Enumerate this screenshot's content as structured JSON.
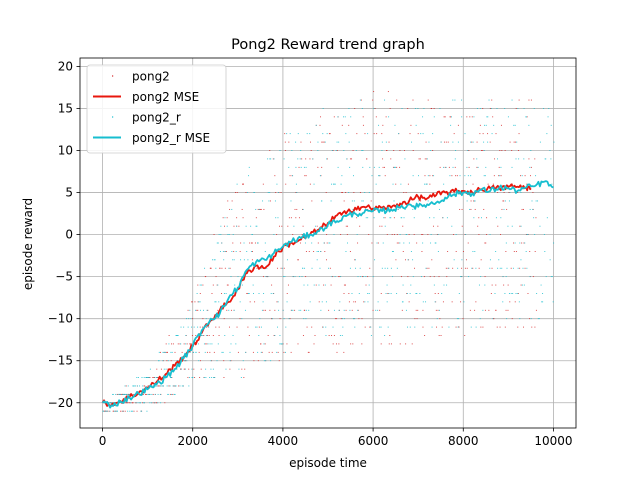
{
  "chart_data": {
    "type": "line",
    "title": "Pong2 Reward trend graph",
    "xlabel": "episode time",
    "ylabel": "episode reward",
    "xlim": [
      -500,
      10500
    ],
    "ylim": [
      -23,
      21
    ],
    "xticks": [
      0,
      2000,
      4000,
      6000,
      8000,
      10000
    ],
    "yticks": [
      -20,
      -15,
      -10,
      -5,
      0,
      5,
      10,
      15,
      20
    ],
    "grid": true,
    "legend_position": "top-left",
    "series": [
      {
        "name": "pong2",
        "kind": "scatter",
        "color": "#d62728",
        "x_range": [
          0,
          9600
        ],
        "y_band": [
          {
            "x": 0,
            "lo": -21,
            "hi": -20
          },
          {
            "x": 1000,
            "lo": -21,
            "hi": -17
          },
          {
            "x": 2000,
            "lo": -17,
            "hi": -7
          },
          {
            "x": 3000,
            "lo": -17,
            "hi": 8
          },
          {
            "x": 4000,
            "lo": -15,
            "hi": 12
          },
          {
            "x": 5000,
            "lo": -14,
            "hi": 15
          },
          {
            "x": 6000,
            "lo": -14,
            "hi": 17
          },
          {
            "x": 7000,
            "lo": -13,
            "hi": 16
          },
          {
            "x": 8000,
            "lo": -12,
            "hi": 16
          },
          {
            "x": 9600,
            "lo": -11,
            "hi": 16
          }
        ]
      },
      {
        "name": "pong2 MSE",
        "kind": "line",
        "color": "#e8170d",
        "x": [
          0,
          200,
          400,
          600,
          800,
          1000,
          1200,
          1400,
          1600,
          1800,
          2000,
          2200,
          2400,
          2600,
          2800,
          3000,
          3200,
          3400,
          3600,
          3800,
          4000,
          4200,
          4400,
          4600,
          4800,
          5000,
          5200,
          5400,
          5600,
          5800,
          6000,
          6200,
          6400,
          6600,
          6800,
          7000,
          7200,
          7400,
          7600,
          7800,
          8000,
          8200,
          8400,
          8600,
          8800,
          9000,
          9200,
          9400,
          9500
        ],
        "y": [
          -20,
          -20.2,
          -19.8,
          -19.3,
          -18.8,
          -18.2,
          -17.5,
          -16.6,
          -15.6,
          -14.5,
          -13.3,
          -11.7,
          -10.2,
          -9,
          -8,
          -6.5,
          -4.6,
          -3.7,
          -4,
          -2.6,
          -1.5,
          -1,
          -0.6,
          0,
          0.6,
          1.4,
          2.3,
          2.5,
          3.2,
          3.3,
          3.1,
          3.2,
          3.2,
          3.7,
          4,
          4.5,
          4.3,
          4.7,
          5,
          5.1,
          5.2,
          5,
          5.4,
          5.5,
          5.5,
          5.7,
          5.7,
          5.6,
          5.5
        ]
      },
      {
        "name": "pong2_r",
        "kind": "scatter",
        "color": "#17becf",
        "x_range": [
          0,
          10000
        ],
        "y_band": [
          {
            "x": 0,
            "lo": -21,
            "hi": -20
          },
          {
            "x": 1000,
            "lo": -21,
            "hi": -16
          },
          {
            "x": 2000,
            "lo": -18,
            "hi": -8
          },
          {
            "x": 3000,
            "lo": -17,
            "hi": 7
          },
          {
            "x": 4000,
            "lo": -14,
            "hi": 12
          },
          {
            "x": 5000,
            "lo": -13,
            "hi": 15
          },
          {
            "x": 6000,
            "lo": -13,
            "hi": 16
          },
          {
            "x": 7000,
            "lo": -12,
            "hi": 16
          },
          {
            "x": 8000,
            "lo": -11,
            "hi": 16
          },
          {
            "x": 10000,
            "lo": -10,
            "hi": 16
          }
        ]
      },
      {
        "name": "pong2_r MSE",
        "kind": "line",
        "color": "#17becf",
        "x": [
          0,
          200,
          400,
          600,
          800,
          1000,
          1200,
          1400,
          1600,
          1800,
          2000,
          2200,
          2400,
          2600,
          2800,
          3000,
          3200,
          3400,
          3600,
          3800,
          4000,
          4200,
          4400,
          4600,
          4800,
          5000,
          5200,
          5400,
          5600,
          5800,
          6000,
          6200,
          6400,
          6600,
          6800,
          7000,
          7200,
          7400,
          7600,
          7800,
          8000,
          8200,
          8400,
          8600,
          8800,
          9000,
          9200,
          9400,
          9600,
          9800,
          10000
        ],
        "y": [
          -20,
          -20.3,
          -19.9,
          -19.4,
          -18.9,
          -18.4,
          -17.8,
          -17,
          -16,
          -14.7,
          -13.2,
          -11.4,
          -10,
          -9.4,
          -7.5,
          -6.3,
          -4.2,
          -3.3,
          -3,
          -2.2,
          -1.4,
          -0.8,
          -0.4,
          0,
          0.4,
          1.2,
          1.6,
          2.2,
          2.5,
          2.6,
          2.8,
          2.8,
          3,
          3.2,
          3.6,
          3.3,
          3.6,
          3.8,
          4.4,
          4.8,
          5,
          4.9,
          5.3,
          5.2,
          5.6,
          5.5,
          5.2,
          5.6,
          5.8,
          6.3,
          5.6
        ]
      }
    ]
  }
}
